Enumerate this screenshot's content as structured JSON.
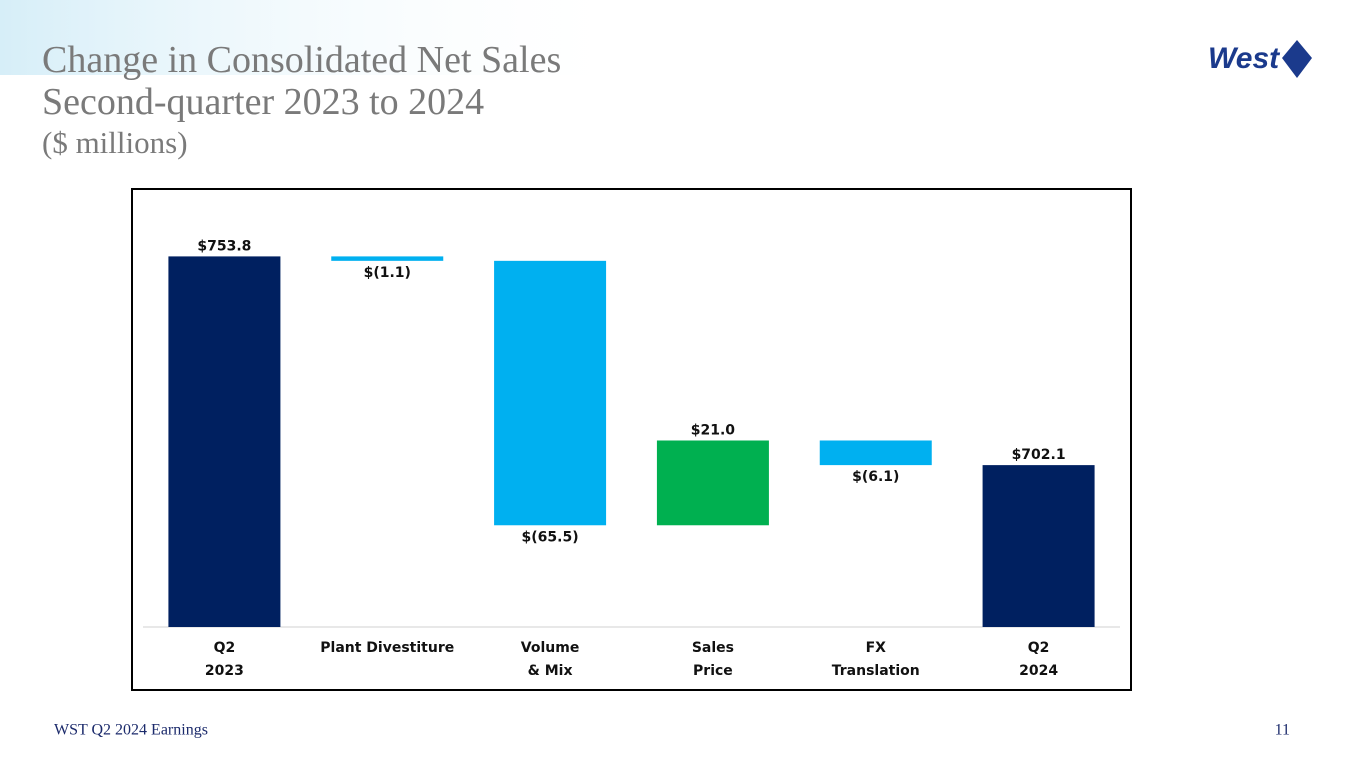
{
  "slide": {
    "title_lines": [
      "Change in Consolidated Net Sales",
      "Second-quarter 2023 to 2024"
    ],
    "subtitle": "($ millions)",
    "logo": "West",
    "footer": "WST Q2 2024 Earnings",
    "page_number": "11"
  },
  "chart_data": {
    "type": "waterfall",
    "categories": [
      "Q2\n2023",
      "Plant Divestiture",
      "Volume\n& Mix",
      "Sales\nPrice",
      "FX\nTranslation",
      "Q2\n2024"
    ],
    "measures": [
      "absolute",
      "relative",
      "relative",
      "relative",
      "relative",
      "absolute"
    ],
    "values": [
      753.8,
      -1.1,
      -65.5,
      21.0,
      -6.1,
      702.1
    ],
    "value_labels": [
      "$753.8",
      "$(1.1)",
      "$(65.5)",
      "$21.0",
      "$(6.1)",
      "$702.1"
    ],
    "total_color": "#002060",
    "decrease_color": "#00b0f0",
    "increase_color": "#00b050",
    "ylim": [
      662,
      770
    ]
  }
}
